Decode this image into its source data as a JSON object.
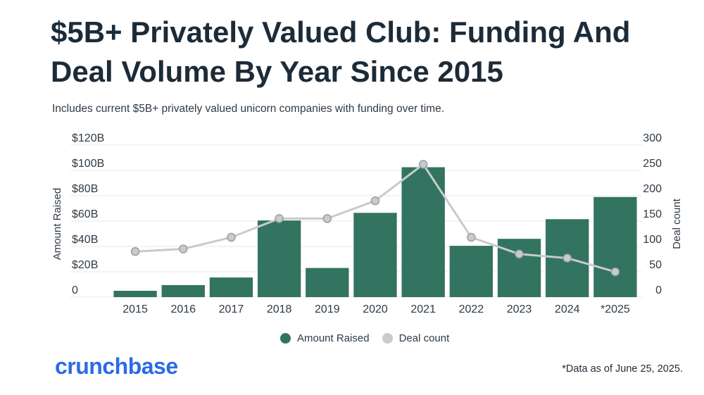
{
  "header": {
    "title": "$5B+ Privately Valued Club: Funding And Deal Volume By Year Since 2015",
    "subtitle": "Includes current $5B+ privately valued unicorn companies with funding over time."
  },
  "colors": {
    "bar": "#327460",
    "line": "#c8cbcd",
    "point_fill": "#c8cbcd",
    "point_stroke": "#9a9ea1",
    "logo": "#2b6be6",
    "grid": "#e6e8ea"
  },
  "chart_data": {
    "type": "bar",
    "categories": [
      "2015",
      "2016",
      "2017",
      "2018",
      "2019",
      "2020",
      "2021",
      "2022",
      "2023",
      "2024",
      "*2025"
    ],
    "series": [
      {
        "name": "Amount Raised",
        "type": "bar",
        "axis": "left",
        "values": [
          5,
          9.5,
          15.5,
          60.5,
          23,
          66.5,
          102.5,
          40.5,
          46,
          61.5,
          79
        ]
      },
      {
        "name": "Deal count",
        "type": "line",
        "axis": "right",
        "values": [
          90,
          95,
          118,
          155,
          155,
          190,
          262,
          118,
          85,
          77,
          50
        ]
      }
    ],
    "ylabel": "Amount Raised",
    "y2label": "Deal count",
    "ylim": [
      0,
      120
    ],
    "y2lim": [
      0,
      300
    ],
    "y_ticks": [
      "0",
      "$20B",
      "$40B",
      "$60B",
      "$80B",
      "$100B",
      "$120B"
    ],
    "y2_ticks": [
      "0",
      "50",
      "100",
      "150",
      "200",
      "250",
      "300"
    ],
    "grid": true,
    "legend_position": "bottom-center"
  },
  "footer": {
    "logo_text": "crunchbase",
    "footnote": "*Data as of June 25, 2025."
  }
}
